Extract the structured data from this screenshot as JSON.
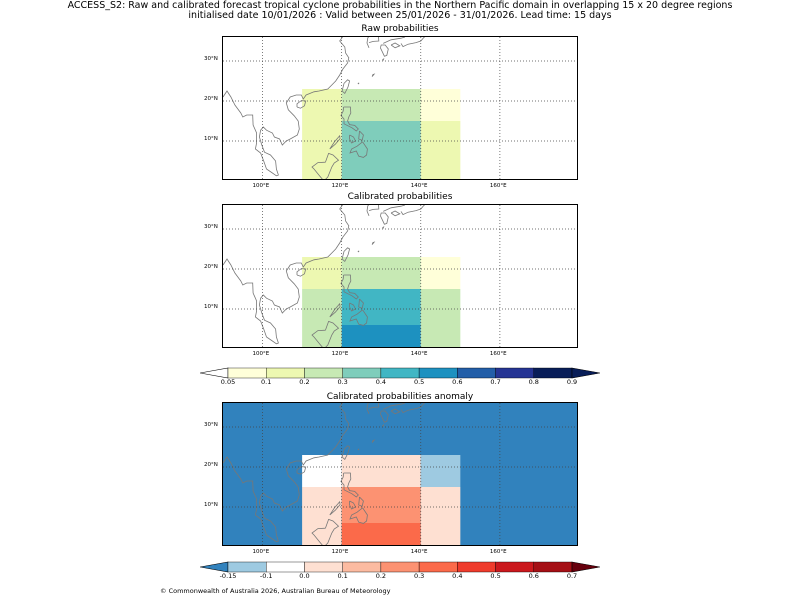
{
  "title": {
    "line1": "ACCESS_S2: Raw and calibrated forecast tropical cyclone probabilities in the Northern Pacific domain in overlapping 15 x 20 degree regions",
    "line2": "initialised date 10/01/2026 :  Valid between 25/01/2026 - 31/01/2026. Lead time: 15 days"
  },
  "map": {
    "lon_range": [
      90,
      180
    ],
    "lat_range": [
      0,
      36
    ],
    "lon_ticks": [
      "100°E",
      "120°E",
      "140°E",
      "160°E"
    ],
    "lon_tick_values": [
      100,
      120,
      140,
      160
    ],
    "lat_ticks": [
      "10°N",
      "20°N",
      "30°N"
    ],
    "lat_tick_values": [
      10,
      20,
      30
    ]
  },
  "panels": [
    {
      "name": "raw",
      "title": "Raw probabilities",
      "cells": [
        {
          "lon": [
            110,
            120
          ],
          "lat": [
            15,
            23
          ],
          "value": 0.1
        },
        {
          "lon": [
            120,
            140
          ],
          "lat": [
            15,
            23
          ],
          "value": 0.2
        },
        {
          "lon": [
            140,
            150
          ],
          "lat": [
            15,
            23
          ],
          "value": 0.05
        },
        {
          "lon": [
            110,
            120
          ],
          "lat": [
            0,
            15
          ],
          "value": 0.1
        },
        {
          "lon": [
            120,
            140
          ],
          "lat": [
            0,
            15
          ],
          "value": 0.3
        },
        {
          "lon": [
            140,
            150
          ],
          "lat": [
            0,
            15
          ],
          "value": 0.1
        }
      ]
    },
    {
      "name": "calibrated",
      "title": "Calibrated probabilities",
      "cells": [
        {
          "lon": [
            110,
            120
          ],
          "lat": [
            15,
            23
          ],
          "value": 0.1
        },
        {
          "lon": [
            120,
            140
          ],
          "lat": [
            15,
            23
          ],
          "value": 0.2
        },
        {
          "lon": [
            140,
            150
          ],
          "lat": [
            15,
            23
          ],
          "value": 0.05
        },
        {
          "lon": [
            110,
            120
          ],
          "lat": [
            0,
            15
          ],
          "value": 0.2
        },
        {
          "lon": [
            120,
            140
          ],
          "lat": [
            6,
            15
          ],
          "value": 0.4
        },
        {
          "lon": [
            120,
            140
          ],
          "lat": [
            0,
            6
          ],
          "value": 0.5
        },
        {
          "lon": [
            140,
            150
          ],
          "lat": [
            0,
            15
          ],
          "value": 0.2
        }
      ]
    },
    {
      "name": "anomaly",
      "title": "Calibrated probabilities anomaly",
      "background_value": -0.2,
      "cells": [
        {
          "lon": [
            110,
            120
          ],
          "lat": [
            15,
            23
          ],
          "value": -0.05
        },
        {
          "lon": [
            120,
            140
          ],
          "lat": [
            15,
            23
          ],
          "value": 0.05
        },
        {
          "lon": [
            140,
            150
          ],
          "lat": [
            15,
            23
          ],
          "value": -0.15
        },
        {
          "lon": [
            110,
            120
          ],
          "lat": [
            0,
            15
          ],
          "value": 0.05
        },
        {
          "lon": [
            120,
            140
          ],
          "lat": [
            6,
            15
          ],
          "value": 0.2
        },
        {
          "lon": [
            120,
            140
          ],
          "lat": [
            0,
            6
          ],
          "value": 0.3
        },
        {
          "lon": [
            140,
            150
          ],
          "lat": [
            0,
            15
          ],
          "value": 0.05
        }
      ]
    }
  ],
  "colorbars": [
    {
      "name": "probability",
      "labels": [
        "0.05",
        "0.1",
        "0.2",
        "0.3",
        "0.4",
        "0.5",
        "0.6",
        "0.7",
        "0.8",
        "0.9"
      ],
      "under_color": "#ffffff",
      "over_color": "#081d58",
      "colors": [
        "#ffffd9",
        "#edf8b1",
        "#c7e9b4",
        "#7fcdbb",
        "#41b6c4",
        "#1d91c0",
        "#225ea8",
        "#253494",
        "#081d58"
      ]
    },
    {
      "name": "anomaly",
      "labels": [
        "-0.15",
        "-0.1",
        "0.0",
        "0.1",
        "0.2",
        "0.3",
        "0.4",
        "0.5",
        "0.6",
        "0.7"
      ],
      "under_color": "#3182bd",
      "over_color": "#67000d",
      "colors": [
        "#9ecae1",
        "#ffffff",
        "#fee0d2",
        "#fcbba1",
        "#fc9272",
        "#fb6a4a",
        "#ef3b2c",
        "#cb181d",
        "#a50f15"
      ]
    }
  ],
  "copyright": "© Commonwealth of Australia 2026, Australian Bureau of Meteorology"
}
